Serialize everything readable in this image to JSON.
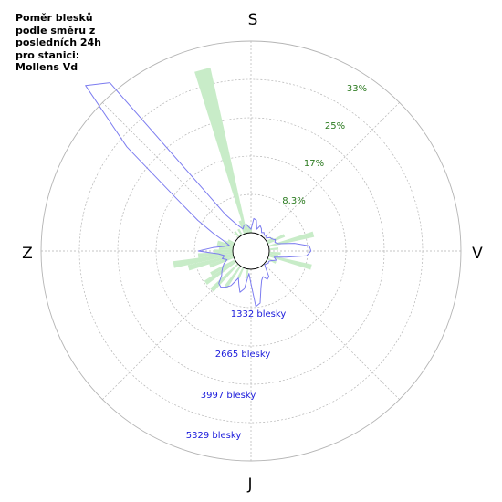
{
  "chart_data": {
    "type": "polar",
    "title_lines": [
      "Poměr blesků",
      "podle směru z",
      "posledních 24h",
      "pro stanici:",
      "Mollens Vd"
    ],
    "directions": {
      "north": "S",
      "east": "V",
      "south": "J",
      "west": "Z"
    },
    "percent_ring_labels": [
      "8.3%",
      "17%",
      "25%",
      "33%"
    ],
    "count_ring_labels": [
      "1332 blesky",
      "2665 blesky",
      "3997 blesky",
      "5329 blesky"
    ],
    "ring_count_values": [
      1332,
      2665,
      3997,
      5329
    ],
    "ring_percent_values": [
      8.3,
      17,
      25,
      33
    ],
    "colors": {
      "percent_bars": "#c8ecc8",
      "count_line": "#7c7cf0",
      "grid": "#b4b4b4",
      "percent_text": "#2a7a1e",
      "count_text": "#1a1adb"
    },
    "percent_series": {
      "bearing_deg": [
        340,
        345,
        350,
        355,
        0,
        60,
        65,
        75,
        85,
        95,
        100,
        105,
        115,
        190,
        205,
        215,
        225,
        235,
        240,
        250,
        255,
        260,
        265,
        270,
        275,
        280,
        285,
        290,
        295,
        320,
        330
      ],
      "percent": [
        3.0,
        36.5,
        2.0,
        1.5,
        1.0,
        1.5,
        4.0,
        10.0,
        2.0,
        2.5,
        2.0,
        9.5,
        2.0,
        2.0,
        2.5,
        5.5,
        8.0,
        8.0,
        6.0,
        5.5,
        10.0,
        13.0,
        7.5,
        4.0,
        3.0,
        3.5,
        3.5,
        2.0,
        1.5,
        1.5,
        1.5
      ]
    },
    "count_series": {
      "bearing_deg": [
        0,
        5,
        10,
        15,
        20,
        25,
        30,
        35,
        40,
        45,
        50,
        55,
        60,
        65,
        70,
        75,
        80,
        85,
        90,
        95,
        100,
        105,
        110,
        115,
        120,
        125,
        130,
        135,
        140,
        145,
        150,
        155,
        160,
        165,
        170,
        175,
        180,
        185,
        190,
        195,
        200,
        205,
        210,
        215,
        220,
        225,
        230,
        235,
        240,
        245,
        250,
        255,
        260,
        265,
        270,
        275,
        280,
        285,
        290,
        295,
        300,
        305,
        310,
        315,
        320,
        325,
        330,
        335,
        340,
        345,
        350,
        355
      ],
      "count": [
        120,
        500,
        450,
        150,
        300,
        220,
        100,
        150,
        80,
        120,
        60,
        180,
        200,
        300,
        250,
        350,
        900,
        1400,
        1450,
        1300,
        600,
        200,
        300,
        150,
        80,
        100,
        60,
        40,
        180,
        450,
        500,
        350,
        450,
        700,
        1200,
        1300,
        500,
        150,
        700,
        850,
        600,
        400,
        750,
        900,
        1000,
        950,
        700,
        600,
        500,
        400,
        250,
        400,
        300,
        500,
        1200,
        700,
        300,
        150,
        350,
        800,
        1500,
        2500,
        5000,
        7500,
        7000,
        900,
        500,
        300,
        180,
        300,
        300,
        200
      ]
    },
    "grid": true,
    "legend": "none"
  }
}
